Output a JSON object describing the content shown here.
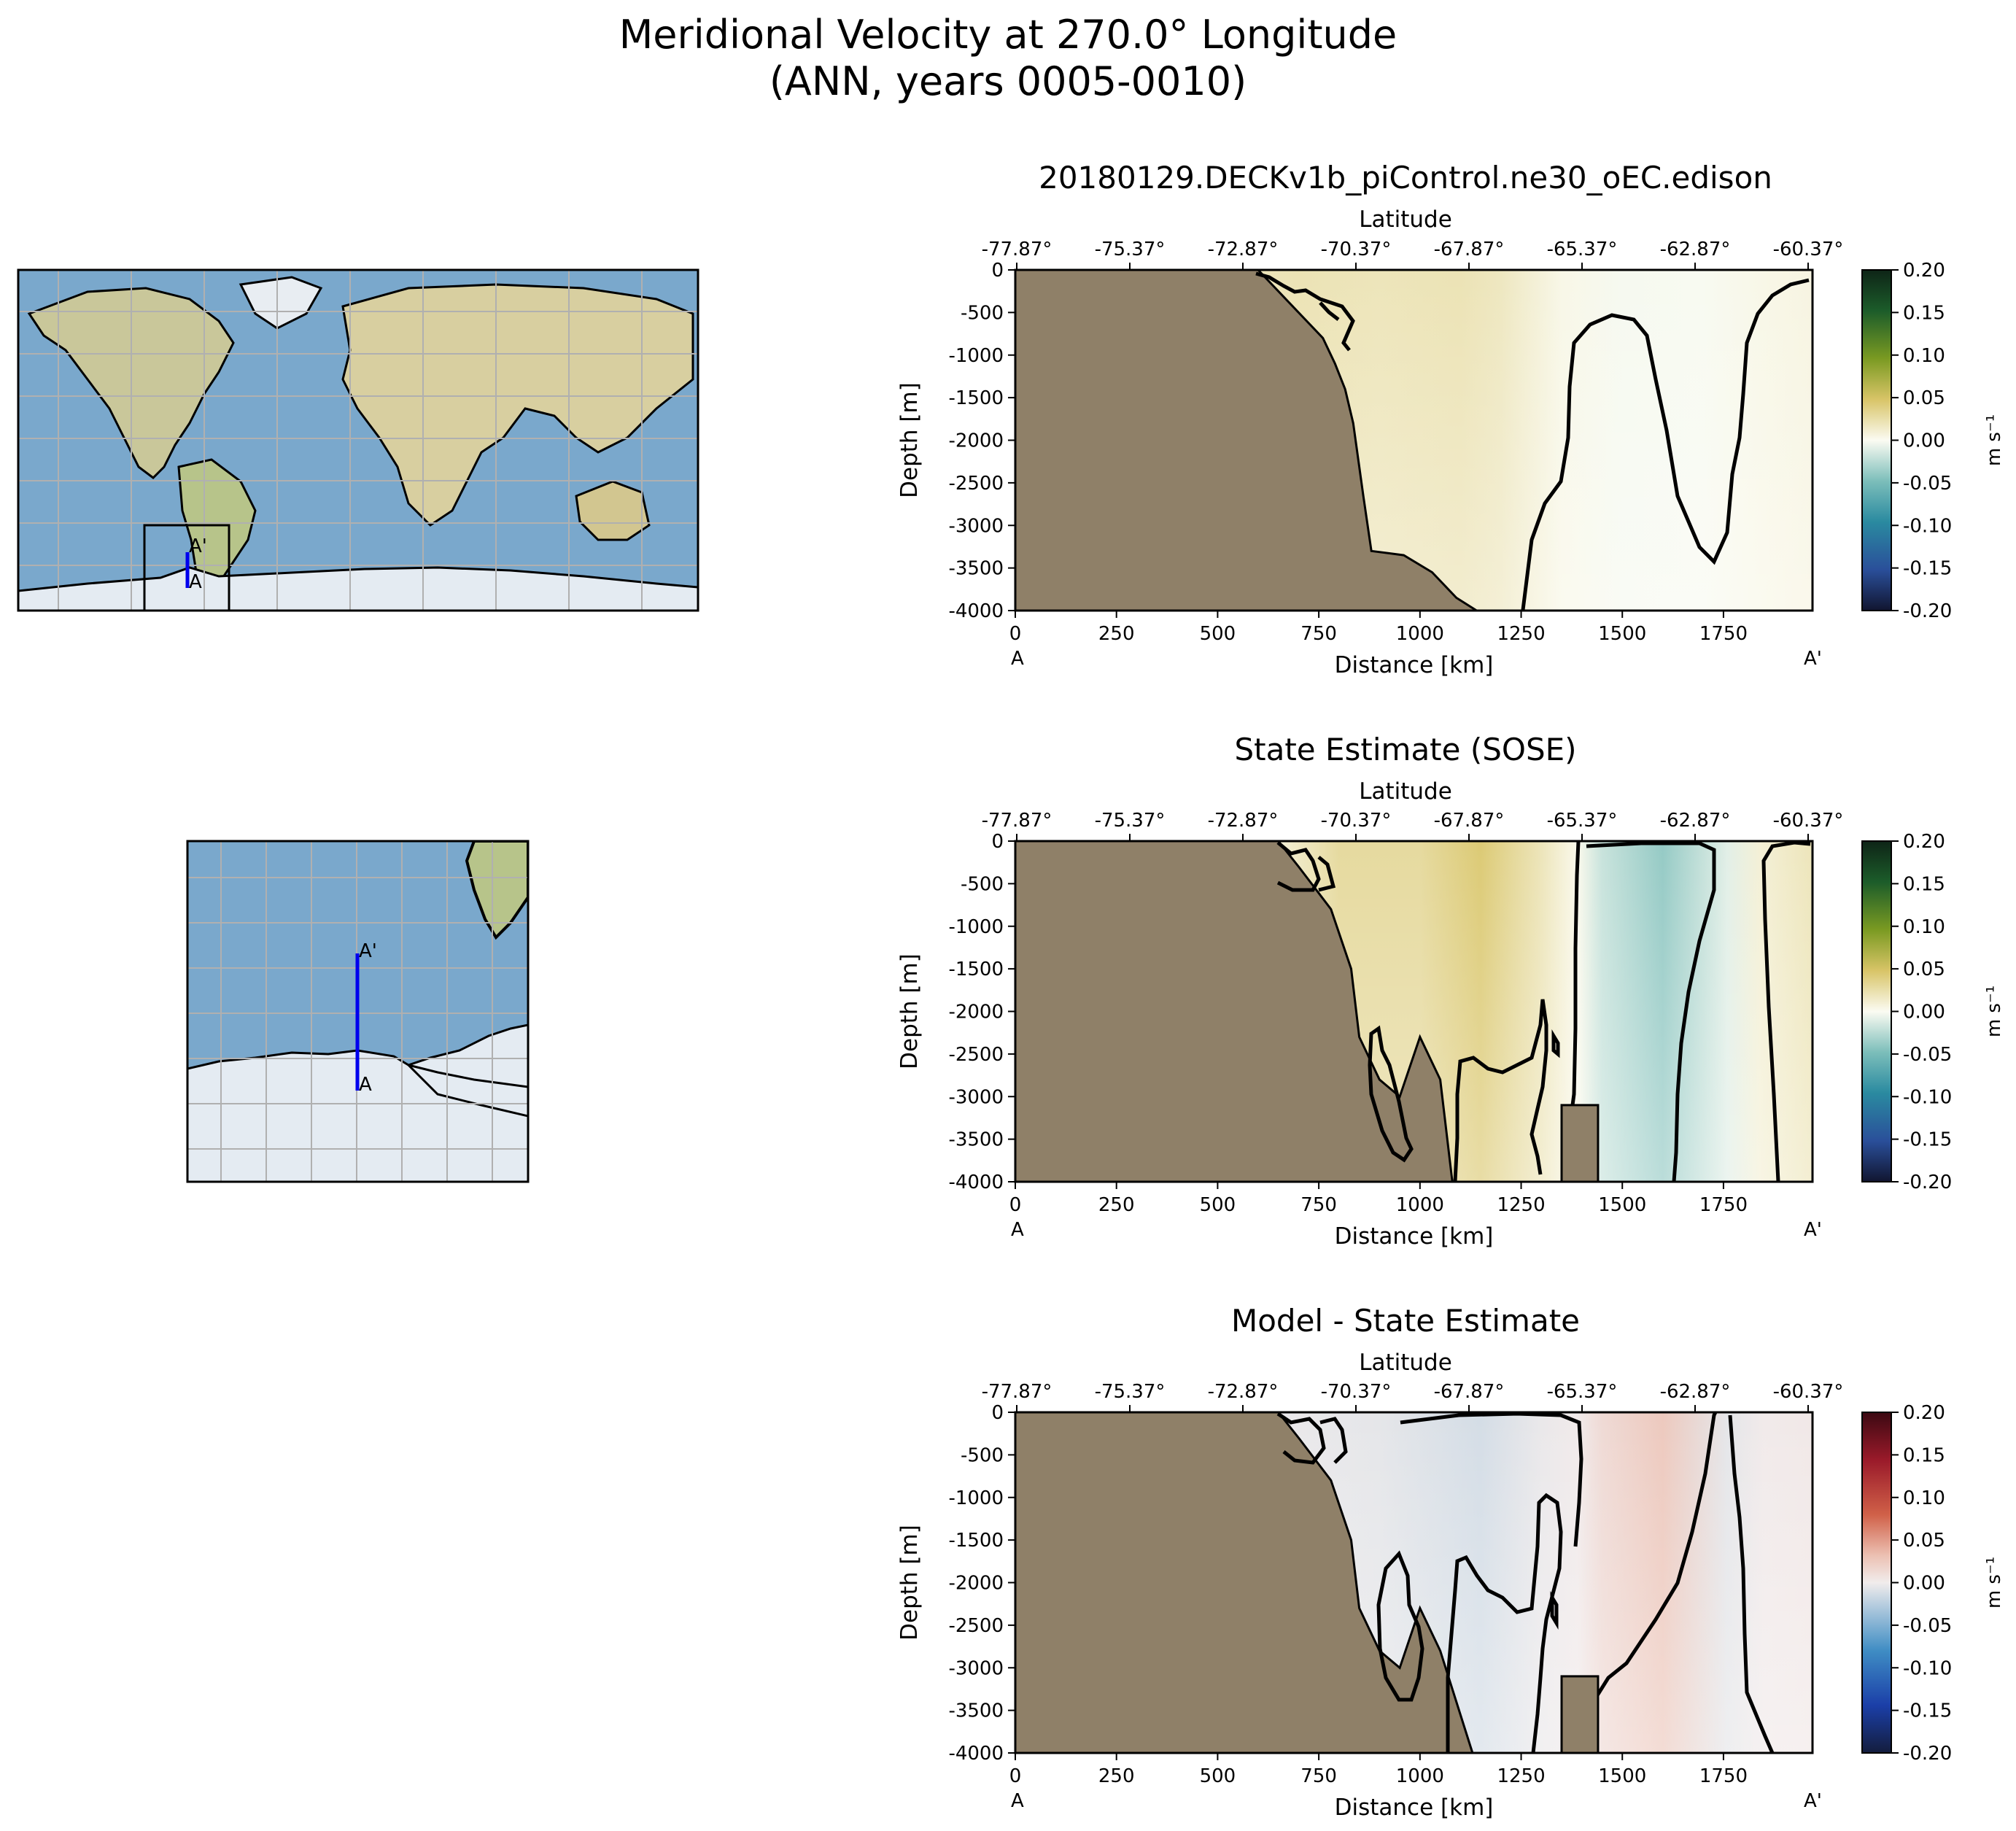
{
  "figure": {
    "title_line1": "Meridional Velocity at 270.0° Longitude",
    "title_line2": "(ANN, years 0005-0010)"
  },
  "maps": {
    "global_labels": {
      "start": "A",
      "end": "A'"
    },
    "inset_labels": {
      "start": "A",
      "end": "A'"
    },
    "section_color": "#0000ee"
  },
  "colors": {
    "land": "#8f8068",
    "contour": "#000000",
    "ocean": "#7aa8cc",
    "ice": "#e4ebf2",
    "continent": "#d2cfa0"
  },
  "chart_data": [
    {
      "type": "heatmap",
      "title": "20180129.DECKv1b_piControl.ne30_oEC.edison",
      "xlabel": "Distance [km]",
      "ylabel": "Depth [m]",
      "x2label": "Latitude",
      "xlim": [
        0,
        1970
      ],
      "ylim": [
        -4000,
        0
      ],
      "xticks": [
        0,
        250,
        500,
        750,
        1000,
        1250,
        1500,
        1750
      ],
      "yticks": [
        0,
        -500,
        -1000,
        -1500,
        -2000,
        -2500,
        -3000,
        -3500,
        -4000
      ],
      "lat_ticks": [
        "-77.87°",
        "-75.37°",
        "-72.87°",
        "-70.37°",
        "-67.87°",
        "-65.37°",
        "-62.87°",
        "-60.37°"
      ],
      "endpoint_labels": [
        "A",
        "A'"
      ],
      "colorbar": {
        "label": "m s⁻¹",
        "ticks": [
          "0.20",
          "0.15",
          "0.10",
          "0.05",
          "0.00",
          "-0.05",
          "-0.10",
          "-0.15",
          "-0.20"
        ],
        "cmap": "delta"
      },
      "bathymetry": [
        [
          0,
          0
        ],
        [
          600,
          0
        ],
        [
          640,
          -200
        ],
        [
          700,
          -500
        ],
        [
          760,
          -800
        ],
        [
          790,
          -1100
        ],
        [
          815,
          -1400
        ],
        [
          835,
          -1800
        ],
        [
          860,
          -2650
        ],
        [
          880,
          -3300
        ],
        [
          960,
          -3350
        ],
        [
          1030,
          -3550
        ],
        [
          1090,
          -3850
        ],
        [
          1140,
          -4000
        ]
      ],
      "field": [
        [
          600,
          0.02
        ],
        [
          700,
          0.022
        ],
        [
          900,
          0.02
        ],
        [
          1100,
          0.022
        ],
        [
          1200,
          0.018
        ],
        [
          1350,
          0.004
        ],
        [
          1500,
          -0.002
        ],
        [
          1700,
          -0.001
        ],
        [
          1850,
          0.004
        ],
        [
          1970,
          0.006
        ]
      ]
    },
    {
      "type": "heatmap",
      "title": "State Estimate (SOSE)",
      "xlabel": "Distance [km]",
      "ylabel": "Depth [m]",
      "x2label": "Latitude",
      "xlim": [
        0,
        1970
      ],
      "ylim": [
        -4000,
        0
      ],
      "xticks": [
        0,
        250,
        500,
        750,
        1000,
        1250,
        1500,
        1750
      ],
      "yticks": [
        0,
        -500,
        -1000,
        -1500,
        -2000,
        -2500,
        -3000,
        -3500,
        -4000
      ],
      "lat_ticks": [
        "-77.87°",
        "-75.37°",
        "-72.87°",
        "-70.37°",
        "-67.87°",
        "-65.37°",
        "-62.87°",
        "-60.37°"
      ],
      "endpoint_labels": [
        "A",
        "A'"
      ],
      "colorbar": {
        "label": "m s⁻¹",
        "ticks": [
          "0.20",
          "0.15",
          "0.10",
          "0.05",
          "0.00",
          "-0.05",
          "-0.10",
          "-0.15",
          "-0.20"
        ],
        "cmap": "delta"
      },
      "bathymetry": [
        [
          0,
          0
        ],
        [
          650,
          0
        ],
        [
          700,
          -300
        ],
        [
          780,
          -800
        ],
        [
          830,
          -1500
        ],
        [
          850,
          -2300
        ],
        [
          900,
          -2800
        ],
        [
          950,
          -3000
        ],
        [
          1000,
          -2300
        ],
        [
          1050,
          -2800
        ],
        [
          1080,
          -4000
        ]
      ],
      "land_blocks": [
        [
          1350,
          1440,
          -3100,
          -4000
        ]
      ],
      "field": [
        [
          650,
          0.01
        ],
        [
          800,
          0.03
        ],
        [
          1000,
          0.03
        ],
        [
          1150,
          0.045
        ],
        [
          1300,
          0.02
        ],
        [
          1390,
          0.002
        ],
        [
          1450,
          -0.02
        ],
        [
          1600,
          -0.04
        ],
        [
          1760,
          -0.01
        ],
        [
          1840,
          0.01
        ],
        [
          1970,
          0.02
        ]
      ]
    },
    {
      "type": "heatmap",
      "title": "Model - State Estimate",
      "xlabel": "Distance [km]",
      "ylabel": "Depth [m]",
      "x2label": "Latitude",
      "xlim": [
        0,
        1970
      ],
      "ylim": [
        -4000,
        0
      ],
      "xticks": [
        0,
        250,
        500,
        750,
        1000,
        1250,
        1500,
        1750
      ],
      "yticks": [
        0,
        -500,
        -1000,
        -1500,
        -2000,
        -2500,
        -3000,
        -3500,
        -4000
      ],
      "lat_ticks": [
        "-77.87°",
        "-75.37°",
        "-72.87°",
        "-70.37°",
        "-67.87°",
        "-65.37°",
        "-62.87°",
        "-60.37°"
      ],
      "endpoint_labels": [
        "A",
        "A'"
      ],
      "colorbar": {
        "label": "m s⁻¹",
        "ticks": [
          "0.20",
          "0.15",
          "0.10",
          "0.05",
          "0.00",
          "-0.05",
          "-0.10",
          "-0.15",
          "-0.20"
        ],
        "cmap": "balance"
      },
      "bathymetry": [
        [
          0,
          0
        ],
        [
          650,
          0
        ],
        [
          700,
          -300
        ],
        [
          780,
          -800
        ],
        [
          830,
          -1500
        ],
        [
          850,
          -2300
        ],
        [
          900,
          -2800
        ],
        [
          950,
          -3000
        ],
        [
          1000,
          -2300
        ],
        [
          1050,
          -2800
        ],
        [
          1130,
          -4000
        ]
      ],
      "land_blocks": [
        [
          1350,
          1440,
          -3100,
          -4000
        ]
      ],
      "field": [
        [
          650,
          -0.004
        ],
        [
          900,
          -0.008
        ],
        [
          1150,
          -0.02
        ],
        [
          1300,
          -0.005
        ],
        [
          1390,
          0.002
        ],
        [
          1450,
          0.02
        ],
        [
          1600,
          0.04
        ],
        [
          1760,
          -0.008
        ],
        [
          1850,
          0.002
        ],
        [
          1970,
          0.004
        ]
      ]
    }
  ]
}
